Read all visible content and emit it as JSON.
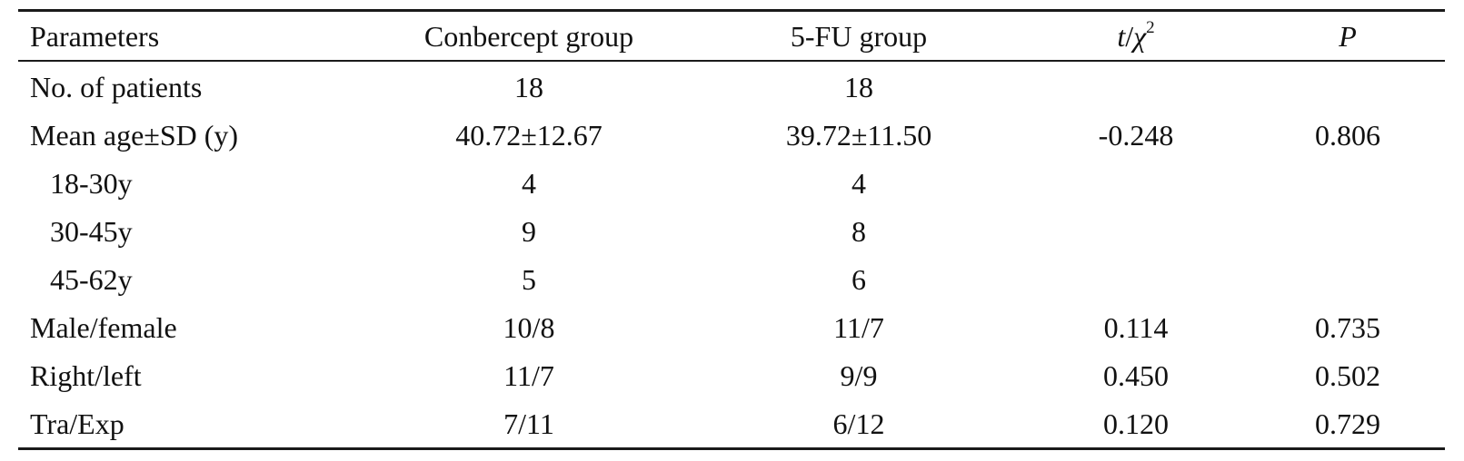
{
  "table": {
    "header": {
      "parameters": "Parameters",
      "conbercept": "Conbercept group",
      "fu": "5-FU group",
      "stat_t": "t",
      "stat_sep": "/",
      "stat_chi": "χ",
      "stat_exp": "2",
      "p": "P"
    },
    "rows": [
      {
        "label": "No. of patients",
        "conbercept": "18",
        "fu": "18",
        "stat": "",
        "p": ""
      },
      {
        "label": "Mean age±SD (y)",
        "conbercept": "40.72±12.67",
        "fu": "39.72±11.50",
        "stat": "-0.248",
        "p": "0.806"
      },
      {
        "label": "18-30y",
        "conbercept": "4",
        "fu": "4",
        "stat": "",
        "p": ""
      },
      {
        "label": "30-45y",
        "conbercept": "9",
        "fu": "8",
        "stat": "",
        "p": ""
      },
      {
        "label": "45-62y",
        "conbercept": "5",
        "fu": "6",
        "stat": "",
        "p": ""
      },
      {
        "label": "Male/female",
        "conbercept": "10/8",
        "fu": "11/7",
        "stat": "0.114",
        "p": "0.735"
      },
      {
        "label": "Right/left",
        "conbercept": "11/7",
        "fu": "9/9",
        "stat": "0.450",
        "p": "0.502"
      },
      {
        "label": "Tra/Exp",
        "conbercept": "7/11",
        "fu": "6/12",
        "stat": "0.120",
        "p": "0.729"
      }
    ]
  }
}
